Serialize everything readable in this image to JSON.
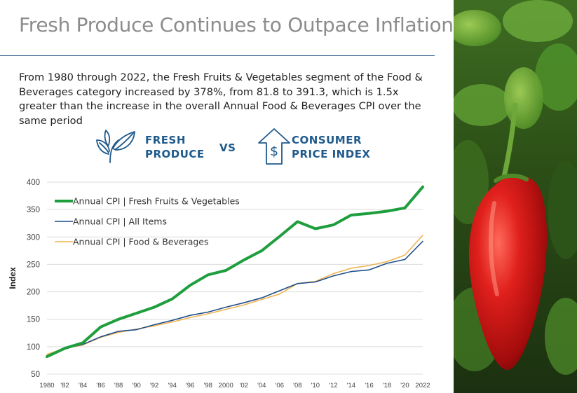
{
  "title": "Fresh Produce Continues to Outpace Inflation",
  "description": "From 1980 through 2022, the Fresh Fruits & Vegetables segment of the Food & Beverages category increased by 378%, from 81.8 to 391.3, which is 1.5x greater than the increase in the overall Annual Food & Beverages CPI over the same period",
  "comparison": {
    "left_label_1": "FRESH",
    "left_label_2": "PRODUCE",
    "vs": "VS",
    "right_label_1": "CONSUMER",
    "right_label_2": "PRICE INDEX",
    "left_icon": "leaf-icon",
    "right_icon": "house-dollar-icon"
  },
  "colors": {
    "fresh": "#1f9e3e",
    "all_items": "#1f4e8c",
    "food_bev": "#f0b450",
    "brand_blue": "#1f5a8c"
  },
  "chart_data": {
    "type": "line",
    "ylabel": "Index",
    "xlabel": "",
    "ylim": [
      50,
      400
    ],
    "yticks": [
      50,
      100,
      150,
      200,
      250,
      300,
      350,
      400
    ],
    "grid": true,
    "legend_position": "top-left",
    "x": [
      1980,
      1982,
      1984,
      1986,
      1988,
      1990,
      1992,
      1994,
      1996,
      1998,
      2000,
      2002,
      2004,
      2006,
      2008,
      2010,
      2012,
      2014,
      2016,
      2018,
      2020,
      2022
    ],
    "x_tick_labels": [
      "1980",
      "'82",
      "'84",
      "'86",
      "'88",
      "'90",
      "'92",
      "'94",
      "'96",
      "'98",
      "2000",
      "'02",
      "'04",
      "'06",
      "'08",
      "'10",
      "'12",
      "'14",
      "'16",
      "'18",
      "'20",
      "2022"
    ],
    "series": [
      {
        "name": "Annual CPI | Fresh Fruits & Vegetables",
        "color": "#1f9e3e",
        "values": [
          81.8,
          97,
          107,
          136,
          150,
          161,
          172,
          187,
          212,
          231,
          239,
          258,
          275,
          301,
          328,
          315,
          322,
          340,
          343,
          347,
          353,
          391.3
        ]
      },
      {
        "name": "Annual CPI | All Items",
        "color": "#1f4e8c",
        "values": [
          82,
          97,
          104,
          118,
          128,
          131,
          140,
          148,
          157,
          163,
          172,
          180,
          189,
          202,
          215,
          218,
          229,
          237,
          240,
          252,
          259,
          292
        ]
      },
      {
        "name": "Annual CPI | Food & Beverages",
        "color": "#f0b450",
        "values": [
          86,
          97,
          103,
          117,
          126,
          132,
          138,
          145,
          153,
          160,
          168,
          176,
          186,
          196,
          215,
          219,
          233,
          243,
          248,
          255,
          267,
          303
        ]
      }
    ]
  }
}
